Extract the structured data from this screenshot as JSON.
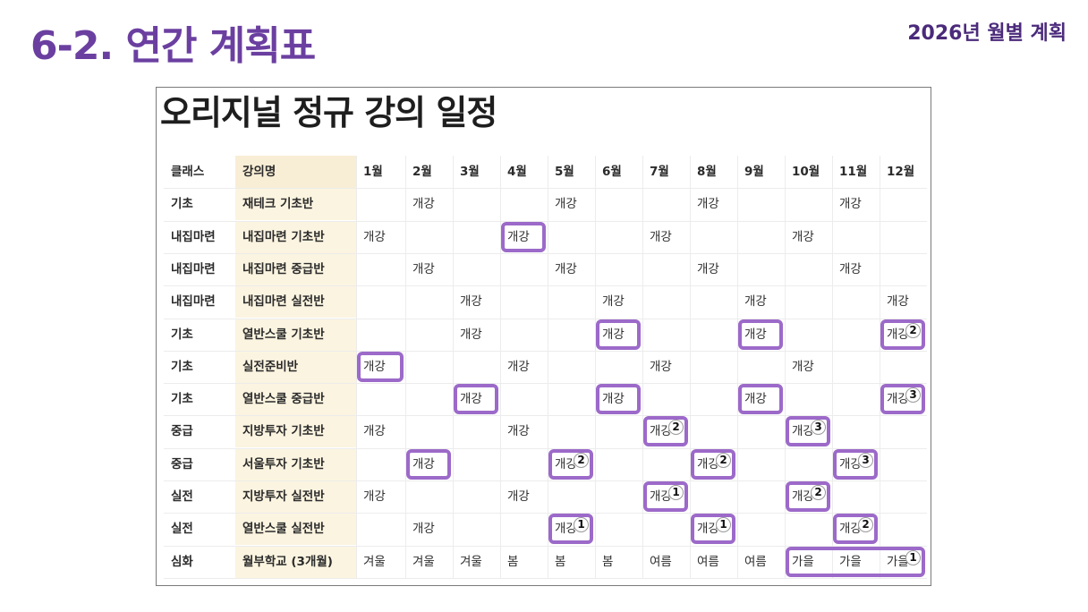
{
  "slide": {
    "title": "6-2. 연간 계획표",
    "subtitle": "2026년 월별 계획"
  },
  "panel": {
    "heading": "오리지널 정규 강의 일정"
  },
  "columns": [
    "클래스",
    "강의명",
    "1월",
    "2월",
    "3월",
    "4월",
    "5월",
    "6월",
    "7월",
    "8월",
    "9월",
    "10월",
    "11월",
    "12월"
  ],
  "rows": [
    {
      "cat": "기초",
      "name": "재테크 기초반",
      "months": [
        "",
        "개강",
        "",
        "",
        "개강",
        "",
        "",
        "개강",
        "",
        "",
        "개강",
        ""
      ]
    },
    {
      "cat": "내집마련",
      "name": "내집마련 기초반",
      "months": [
        "개강",
        "",
        "",
        "개강",
        "",
        "",
        "개강",
        "",
        "",
        "개강",
        "",
        ""
      ]
    },
    {
      "cat": "내집마련",
      "name": "내집마련 중급반",
      "months": [
        "",
        "개강",
        "",
        "",
        "개강",
        "",
        "",
        "개강",
        "",
        "",
        "개강",
        ""
      ]
    },
    {
      "cat": "내집마련",
      "name": "내집마련 실전반",
      "months": [
        "",
        "",
        "개강",
        "",
        "",
        "개강",
        "",
        "",
        "개강",
        "",
        "",
        "개강"
      ]
    },
    {
      "cat": "기초",
      "name": "열반스쿨 기초반",
      "months": [
        "",
        "",
        "개강",
        "",
        "",
        "개강",
        "",
        "",
        "개강",
        "",
        "",
        "개강"
      ]
    },
    {
      "cat": "기초",
      "name": "실전준비반",
      "months": [
        "개강",
        "",
        "",
        "개강",
        "",
        "",
        "개강",
        "",
        "",
        "개강",
        "",
        ""
      ]
    },
    {
      "cat": "기초",
      "name": "열반스쿨 중급반",
      "months": [
        "",
        "",
        "개강",
        "",
        "",
        "개강",
        "",
        "",
        "개강",
        "",
        "",
        "개강"
      ]
    },
    {
      "cat": "중급",
      "name": "지방투자 기초반",
      "months": [
        "개강",
        "",
        "",
        "개강",
        "",
        "",
        "개강",
        "",
        "",
        "개강",
        "",
        ""
      ]
    },
    {
      "cat": "중급",
      "name": "서울투자 기초반",
      "months": [
        "",
        "개강",
        "",
        "",
        "개강",
        "",
        "",
        "개강",
        "",
        "",
        "개강",
        ""
      ]
    },
    {
      "cat": "실전",
      "name": "지방투자 실전반",
      "months": [
        "개강",
        "",
        "",
        "개강",
        "",
        "",
        "개강",
        "",
        "",
        "개강",
        "",
        ""
      ]
    },
    {
      "cat": "실전",
      "name": "열반스쿨 실전반",
      "months": [
        "",
        "개강",
        "",
        "",
        "개강",
        "",
        "",
        "개강",
        "",
        "",
        "개강",
        ""
      ]
    },
    {
      "cat": "심화",
      "name": "월부학교 (3개월)",
      "months": [
        "겨울",
        "겨울",
        "겨울",
        "봄",
        "봄",
        "봄",
        "여름",
        "여름",
        "여름",
        "가을",
        "가을",
        "가을"
      ]
    }
  ],
  "highlights": [
    {
      "row": 1,
      "month": 4,
      "span": 1,
      "badge": ""
    },
    {
      "row": 4,
      "month": 6,
      "span": 1,
      "badge": ""
    },
    {
      "row": 4,
      "month": 9,
      "span": 1,
      "badge": ""
    },
    {
      "row": 4,
      "month": 12,
      "span": 1,
      "badge": "2"
    },
    {
      "row": 5,
      "month": 1,
      "span": 1,
      "badge": ""
    },
    {
      "row": 6,
      "month": 3,
      "span": 1,
      "badge": ""
    },
    {
      "row": 6,
      "month": 6,
      "span": 1,
      "badge": ""
    },
    {
      "row": 6,
      "month": 9,
      "span": 1,
      "badge": ""
    },
    {
      "row": 6,
      "month": 12,
      "span": 1,
      "badge": "3"
    },
    {
      "row": 7,
      "month": 7,
      "span": 1,
      "badge": "2"
    },
    {
      "row": 7,
      "month": 10,
      "span": 1,
      "badge": "3"
    },
    {
      "row": 8,
      "month": 2,
      "span": 1,
      "badge": ""
    },
    {
      "row": 8,
      "month": 5,
      "span": 1,
      "badge": "2"
    },
    {
      "row": 8,
      "month": 8,
      "span": 1,
      "badge": "2"
    },
    {
      "row": 8,
      "month": 11,
      "span": 1,
      "badge": "3"
    },
    {
      "row": 9,
      "month": 7,
      "span": 1,
      "badge": "1"
    },
    {
      "row": 9,
      "month": 10,
      "span": 1,
      "badge": "2"
    },
    {
      "row": 10,
      "month": 5,
      "span": 1,
      "badge": "1"
    },
    {
      "row": 10,
      "month": 8,
      "span": 1,
      "badge": "1"
    },
    {
      "row": 10,
      "month": 11,
      "span": 1,
      "badge": "2"
    },
    {
      "row": 11,
      "month": 10,
      "span": 3,
      "badge": "1"
    }
  ],
  "colors": {
    "title": "#6b3fa0",
    "subtitle": "#4b2a7b",
    "highlight_border": "#9c6ac9",
    "course_column_bg": "#fbf4e0"
  }
}
